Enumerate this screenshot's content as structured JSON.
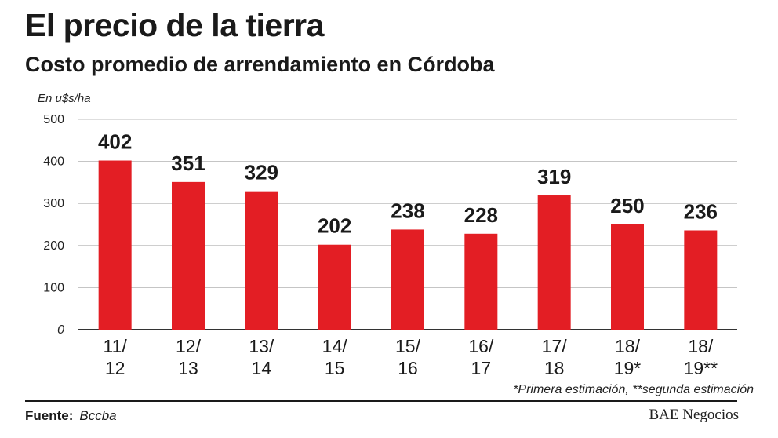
{
  "header": {
    "title": "El precio de la tierra",
    "subtitle": "Costo promedio de arrendamiento en Córdoba"
  },
  "chart_data": {
    "type": "bar",
    "unit_label": "En u$s/ha",
    "categories": [
      "11/\n12",
      "12/\n13",
      "13/\n14",
      "14/\n15",
      "15/\n16",
      "16/\n17",
      "17/\n18",
      "18/\n19*",
      "18/\n19**"
    ],
    "values": [
      402,
      351,
      329,
      202,
      238,
      228,
      319,
      250,
      236
    ],
    "ylim": [
      0,
      500
    ],
    "yticks": [
      0,
      100,
      200,
      300,
      400,
      500
    ],
    "grid": true,
    "bar_color": "#e31e24",
    "note": "*Primera estimación, **segunda estimación"
  },
  "footer": {
    "source_label": "Fuente:",
    "source_value": "Bccba",
    "brand": "BAE Negocios"
  }
}
